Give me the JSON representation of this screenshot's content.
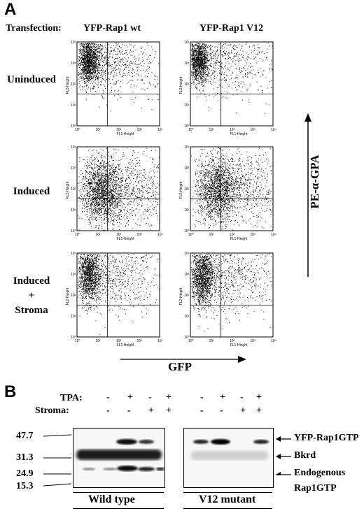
{
  "panel_a": {
    "letter": "A",
    "transfection_label": "Transfection:",
    "columns": [
      "YFP-Rap1 wt",
      "YFP-Rap1 V12"
    ],
    "rows": [
      {
        "label_lines": [
          "Uninduced"
        ]
      },
      {
        "label_lines": [
          "Induced"
        ]
      },
      {
        "label_lines": [
          "Induced",
          "+",
          "Stroma"
        ]
      }
    ],
    "y_axis_label": "PE-α-GPA",
    "x_axis_label": "GFP",
    "plot_axis": {
      "x_label": "FL1-Height",
      "y_label": "FL2-Height"
    },
    "tick_labels": [
      "10⁰",
      "10¹",
      "10²",
      "10³",
      "10⁴"
    ]
  },
  "panel_b": {
    "letter": "B",
    "row_labels": {
      "tpa": "TPA:",
      "stroma": "Stroma:"
    },
    "tpa_signs": [
      "-",
      "+",
      "-",
      "+",
      "-",
      "+",
      "-",
      "+"
    ],
    "stroma_signs": [
      "-",
      "-",
      "+",
      "+",
      "-",
      "-",
      "+",
      "+"
    ],
    "mw_markers": [
      "47.7",
      "31.3",
      "24.9",
      "15.3"
    ],
    "band_labels": [
      "YFP-Rap1GTP",
      "Bkrd",
      "Endogenous",
      "Rap1GTP"
    ],
    "blot_labels": [
      "Wild type",
      "V12 mutant"
    ]
  }
}
